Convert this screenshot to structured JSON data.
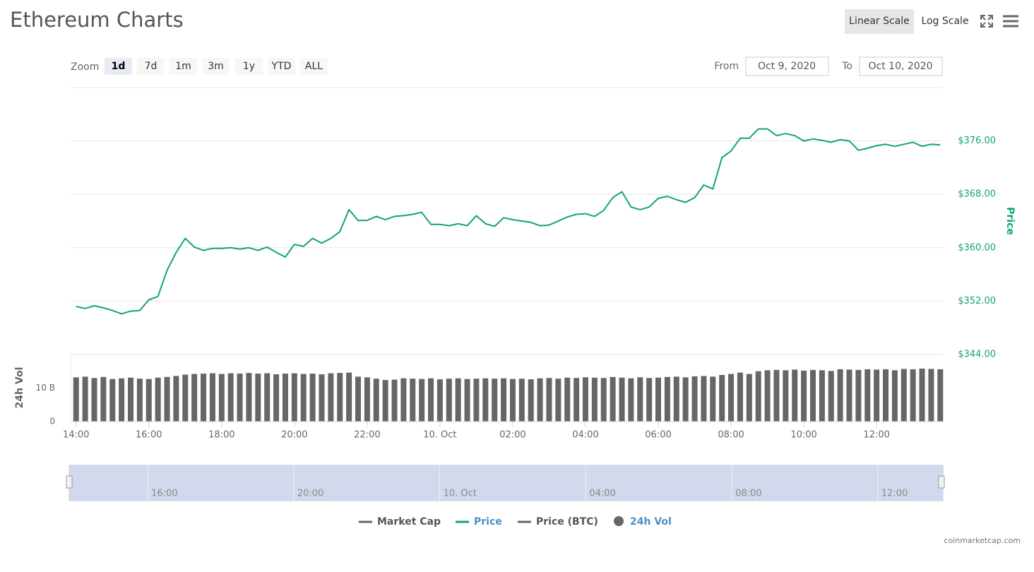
{
  "header": {
    "title": "Ethereum Charts",
    "scale_buttons": [
      "Linear Scale",
      "Log Scale"
    ]
  },
  "controls": {
    "zoom_label": "Zoom",
    "zoom": [
      "1d",
      "7d",
      "1m",
      "3m",
      "1y",
      "YTD",
      "ALL"
    ],
    "selected_zoom": "1d",
    "from_label": "From",
    "from": "Oct 9, 2020",
    "to_label": "To",
    "to": "Oct 10, 2020"
  },
  "chart_data": [
    {
      "type": "line",
      "y_label": "Price",
      "xlim": [
        "2020-10-09T13:51",
        "2020-10-10T13:47"
      ],
      "ylim": [
        344,
        384
      ],
      "yticks": [
        {
          "value": 344,
          "label": "$344.00"
        },
        {
          "value": 352,
          "label": "$352.00"
        },
        {
          "value": 360,
          "label": "$360.00"
        },
        {
          "value": 368,
          "label": "$368.00"
        },
        {
          "value": 376,
          "label": "$376.00"
        }
      ],
      "grid": true,
      "x": [
        "2020-10-09T14:00",
        "2020-10-09T14:15",
        "2020-10-09T14:30",
        "2020-10-09T14:45",
        "2020-10-09T15:00",
        "2020-10-09T15:15",
        "2020-10-09T15:30",
        "2020-10-09T15:45",
        "2020-10-09T16:00",
        "2020-10-09T16:15",
        "2020-10-09T16:30",
        "2020-10-09T16:45",
        "2020-10-09T17:00",
        "2020-10-09T17:15",
        "2020-10-09T17:30",
        "2020-10-09T17:45",
        "2020-10-09T18:00",
        "2020-10-09T18:15",
        "2020-10-09T18:30",
        "2020-10-09T18:45",
        "2020-10-09T19:00",
        "2020-10-09T19:15",
        "2020-10-09T19:30",
        "2020-10-09T19:45",
        "2020-10-09T20:00",
        "2020-10-09T20:15",
        "2020-10-09T20:30",
        "2020-10-09T20:45",
        "2020-10-09T21:00",
        "2020-10-09T21:15",
        "2020-10-09T21:30",
        "2020-10-09T21:45",
        "2020-10-09T22:00",
        "2020-10-09T22:15",
        "2020-10-09T22:30",
        "2020-10-09T22:45",
        "2020-10-09T23:00",
        "2020-10-09T23:15",
        "2020-10-09T23:30",
        "2020-10-09T23:45",
        "2020-10-10T00:00",
        "2020-10-10T00:15",
        "2020-10-10T00:30",
        "2020-10-10T00:45",
        "2020-10-10T01:00",
        "2020-10-10T01:15",
        "2020-10-10T01:30",
        "2020-10-10T01:45",
        "2020-10-10T02:00",
        "2020-10-10T02:15",
        "2020-10-10T02:30",
        "2020-10-10T02:45",
        "2020-10-10T03:00",
        "2020-10-10T03:15",
        "2020-10-10T03:30",
        "2020-10-10T03:45",
        "2020-10-10T04:00",
        "2020-10-10T04:15",
        "2020-10-10T04:30",
        "2020-10-10T04:45",
        "2020-10-10T05:00",
        "2020-10-10T05:15",
        "2020-10-10T05:30",
        "2020-10-10T05:45",
        "2020-10-10T06:00",
        "2020-10-10T06:15",
        "2020-10-10T06:30",
        "2020-10-10T06:45",
        "2020-10-10T07:00",
        "2020-10-10T07:15",
        "2020-10-10T07:30",
        "2020-10-10T07:45",
        "2020-10-10T08:00",
        "2020-10-10T08:15",
        "2020-10-10T08:30",
        "2020-10-10T08:45",
        "2020-10-10T09:00",
        "2020-10-10T09:15",
        "2020-10-10T09:30",
        "2020-10-10T09:45",
        "2020-10-10T10:00",
        "2020-10-10T10:15",
        "2020-10-10T10:30",
        "2020-10-10T10:45",
        "2020-10-10T11:00",
        "2020-10-10T11:15",
        "2020-10-10T11:30",
        "2020-10-10T11:45",
        "2020-10-10T12:00",
        "2020-10-10T12:15",
        "2020-10-10T12:30",
        "2020-10-10T12:45",
        "2020-10-10T13:00",
        "2020-10-10T13:15",
        "2020-10-10T13:30",
        "2020-10-10T13:45"
      ],
      "series": [
        {
          "name": "Price",
          "color": "#12a27a",
          "values": [
            351.2,
            350.9,
            351.3,
            351.0,
            350.6,
            350.1,
            350.5,
            350.6,
            352.2,
            352.7,
            356.6,
            359.3,
            361.4,
            360.1,
            359.6,
            359.9,
            359.9,
            360.0,
            359.8,
            360.0,
            359.6,
            360.1,
            359.3,
            358.6,
            360.5,
            360.2,
            361.4,
            360.7,
            361.4,
            362.4,
            365.7,
            364.1,
            364.1,
            364.7,
            364.2,
            364.7,
            364.8,
            365.0,
            365.3,
            363.5,
            363.5,
            363.3,
            363.6,
            363.3,
            364.8,
            363.6,
            363.2,
            364.5,
            364.2,
            364.0,
            363.8,
            363.3,
            363.4,
            364.0,
            364.6,
            365.0,
            365.1,
            364.7,
            365.6,
            367.5,
            368.4,
            366.1,
            365.7,
            366.1,
            367.4,
            367.7,
            367.2,
            366.8,
            367.5,
            369.4,
            368.8,
            373.5,
            374.5,
            376.4,
            376.4,
            377.8,
            377.8,
            376.8,
            377.1,
            376.8,
            376.0,
            376.3,
            376.1,
            375.8,
            376.2,
            376.0,
            374.6,
            374.9,
            375.3,
            375.5,
            375.2,
            375.5,
            375.8,
            375.2,
            375.5,
            375.4
          ]
        }
      ]
    },
    {
      "type": "bar",
      "y_label": "24h Vol",
      "xlim": [
        "2020-10-09T13:51",
        "2020-10-10T13:47"
      ],
      "xticks": [
        {
          "value": "2020-10-09T14:00",
          "label": "14:00"
        },
        {
          "value": "2020-10-09T16:00",
          "label": "16:00"
        },
        {
          "value": "2020-10-09T18:00",
          "label": "18:00"
        },
        {
          "value": "2020-10-09T20:00",
          "label": "20:00"
        },
        {
          "value": "2020-10-09T22:00",
          "label": "22:00"
        },
        {
          "value": "2020-10-10T00:00",
          "label": "10. Oct"
        },
        {
          "value": "2020-10-10T02:00",
          "label": "02:00"
        },
        {
          "value": "2020-10-10T04:00",
          "label": "04:00"
        },
        {
          "value": "2020-10-10T06:00",
          "label": "06:00"
        },
        {
          "value": "2020-10-10T08:00",
          "label": "08:00"
        },
        {
          "value": "2020-10-10T10:00",
          "label": "10:00"
        },
        {
          "value": "2020-10-10T12:00",
          "label": "12:00"
        }
      ],
      "ylim": [
        0,
        20
      ],
      "yticks": [
        0,
        {
          "value": 10,
          "label": "10 B"
        }
      ],
      "x": [
        "2020-10-09T14:00",
        "2020-10-09T14:15",
        "2020-10-09T14:30",
        "2020-10-09T14:45",
        "2020-10-09T15:00",
        "2020-10-09T15:15",
        "2020-10-09T15:30",
        "2020-10-09T15:45",
        "2020-10-09T16:00",
        "2020-10-09T16:15",
        "2020-10-09T16:30",
        "2020-10-09T16:45",
        "2020-10-09T17:00",
        "2020-10-09T17:15",
        "2020-10-09T17:30",
        "2020-10-09T17:45",
        "2020-10-09T18:00",
        "2020-10-09T18:15",
        "2020-10-09T18:30",
        "2020-10-09T18:45",
        "2020-10-09T19:00",
        "2020-10-09T19:15",
        "2020-10-09T19:30",
        "2020-10-09T19:45",
        "2020-10-09T20:00",
        "2020-10-09T20:15",
        "2020-10-09T20:30",
        "2020-10-09T20:45",
        "2020-10-09T21:00",
        "2020-10-09T21:15",
        "2020-10-09T21:30",
        "2020-10-09T21:45",
        "2020-10-09T22:00",
        "2020-10-09T22:15",
        "2020-10-09T22:30",
        "2020-10-09T22:45",
        "2020-10-09T23:00",
        "2020-10-09T23:15",
        "2020-10-09T23:30",
        "2020-10-09T23:45",
        "2020-10-10T00:00",
        "2020-10-10T00:15",
        "2020-10-10T00:30",
        "2020-10-10T00:45",
        "2020-10-10T01:00",
        "2020-10-10T01:15",
        "2020-10-10T01:30",
        "2020-10-10T01:45",
        "2020-10-10T02:00",
        "2020-10-10T02:15",
        "2020-10-10T02:30",
        "2020-10-10T02:45",
        "2020-10-10T03:00",
        "2020-10-10T03:15",
        "2020-10-10T03:30",
        "2020-10-10T03:45",
        "2020-10-10T04:00",
        "2020-10-10T04:15",
        "2020-10-10T04:30",
        "2020-10-10T04:45",
        "2020-10-10T05:00",
        "2020-10-10T05:15",
        "2020-10-10T05:30",
        "2020-10-10T05:45",
        "2020-10-10T06:00",
        "2020-10-10T06:15",
        "2020-10-10T06:30",
        "2020-10-10T06:45",
        "2020-10-10T07:00",
        "2020-10-10T07:15",
        "2020-10-10T07:30",
        "2020-10-10T07:45",
        "2020-10-10T08:00",
        "2020-10-10T08:15",
        "2020-10-10T08:30",
        "2020-10-10T08:45",
        "2020-10-10T09:00",
        "2020-10-10T09:15",
        "2020-10-10T09:30",
        "2020-10-10T09:45",
        "2020-10-10T10:00",
        "2020-10-10T10:15",
        "2020-10-10T10:30",
        "2020-10-10T10:45",
        "2020-10-10T11:00",
        "2020-10-10T11:15",
        "2020-10-10T11:30",
        "2020-10-10T11:45",
        "2020-10-10T12:00",
        "2020-10-10T12:15",
        "2020-10-10T12:30",
        "2020-10-10T12:45",
        "2020-10-10T13:00",
        "2020-10-10T13:15",
        "2020-10-10T13:30",
        "2020-10-10T13:45"
      ],
      "series": [
        {
          "name": "24h Vol",
          "color": "#666666",
          "values": [
            13.2,
            13.4,
            13.0,
            13.3,
            12.7,
            12.9,
            13.1,
            12.8,
            12.7,
            13.1,
            13.3,
            13.6,
            14.0,
            14.2,
            14.3,
            14.4,
            14.2,
            14.4,
            14.3,
            14.5,
            14.3,
            14.4,
            14.1,
            14.3,
            14.4,
            14.2,
            14.3,
            14.1,
            14.4,
            14.5,
            14.6,
            13.4,
            13.2,
            12.8,
            12.4,
            12.5,
            12.9,
            12.8,
            12.7,
            12.9,
            12.6,
            12.8,
            12.9,
            12.7,
            12.8,
            12.9,
            12.8,
            12.9,
            12.7,
            12.8,
            12.6,
            12.9,
            13.0,
            12.8,
            13.1,
            13.0,
            13.2,
            13.1,
            13.0,
            13.3,
            13.1,
            12.9,
            13.2,
            13.0,
            13.1,
            13.3,
            13.4,
            13.2,
            13.5,
            13.6,
            13.4,
            13.9,
            14.2,
            14.6,
            14.2,
            15.0,
            15.3,
            15.4,
            15.3,
            15.5,
            15.2,
            15.4,
            15.3,
            15.1,
            15.6,
            15.5,
            15.4,
            15.6,
            15.5,
            15.6,
            15.3,
            15.7,
            15.6,
            15.8,
            15.7,
            15.6
          ]
        }
      ]
    }
  ],
  "navigator": {
    "xlim": [
      "2020-10-09T13:51",
      "2020-10-10T13:47"
    ],
    "xticks": [
      {
        "value": "2020-10-09T16:00",
        "label": "16:00"
      },
      {
        "value": "2020-10-09T20:00",
        "label": "20:00"
      },
      {
        "value": "2020-10-10T00:00",
        "label": "10. Oct"
      },
      {
        "value": "2020-10-10T04:00",
        "label": "04:00"
      },
      {
        "value": "2020-10-10T08:00",
        "label": "08:00"
      },
      {
        "value": "2020-10-10T12:00",
        "label": "12:00"
      }
    ]
  },
  "legend_hidden": [
    {
      "name": "Market Cap",
      "color": "#666666"
    },
    {
      "name": "Price (BTC)",
      "color": "#666666"
    }
  ],
  "credit": "coinmarketcap.com"
}
